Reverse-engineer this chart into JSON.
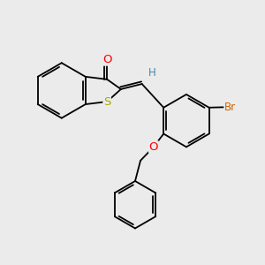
{
  "background_color": "#ebebeb",
  "atom_colors": {
    "O": "#ff0000",
    "S": "#aaaa00",
    "Br": "#cc6600",
    "H": "#4488aa",
    "C": "#000000"
  },
  "font_size": 8.5,
  "line_width": 1.3,
  "figsize": [
    3.0,
    3.0
  ],
  "dpi": 100,
  "xlim": [
    0,
    10
  ],
  "ylim": [
    0,
    10
  ]
}
